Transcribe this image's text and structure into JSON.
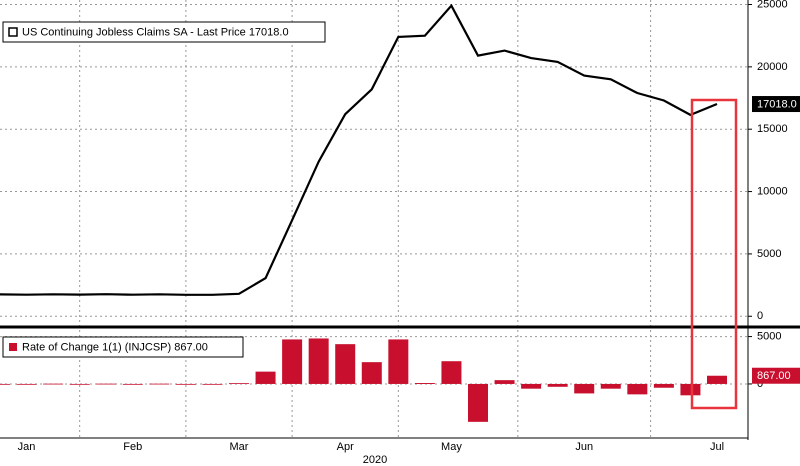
{
  "chart_data": [
    {
      "type": "line",
      "series": [
        {
          "name": "US Continuing Jobless Claims SA - Last Price 17018.0",
          "color": "#000000",
          "values": [
            1750,
            1730,
            1760,
            1740,
            1770,
            1730,
            1760,
            1720,
            1720,
            1800,
            3060,
            7700,
            12400,
            16200,
            18200,
            22400,
            22500,
            24900,
            20900,
            21300,
            20700,
            20400,
            19300,
            19000,
            17900,
            17300,
            16151,
            17018
          ]
        }
      ],
      "last_label": "17018.0",
      "ylim": [
        -700,
        25200
      ],
      "yticks": [
        0,
        5000,
        10000,
        15000,
        20000,
        25000
      ],
      "grid": true
    },
    {
      "type": "bar",
      "categories": [
        null,
        "Jan",
        null,
        null,
        null,
        "Feb",
        null,
        null,
        null,
        "Mar",
        null,
        null,
        null,
        "Apr",
        null,
        null,
        null,
        "May",
        null,
        null,
        null,
        null,
        "Jun",
        null,
        null,
        null,
        null,
        "Jul"
      ],
      "x_label": "2020",
      "series": [
        {
          "name": "Rate of Change 1(1) (INJCSP) 867.00",
          "color": "#c8102e",
          "values": [
            0,
            -20,
            30,
            -20,
            30,
            -40,
            30,
            -40,
            0,
            80,
            1300,
            4700,
            4800,
            4200,
            2300,
            4700,
            100,
            2400,
            -4000,
            400,
            -500,
            -300,
            -1000,
            -500,
            -1100,
            -400,
            -1200,
            867
          ]
        }
      ],
      "last_label": "867.00",
      "ylim": [
        -5600,
        5800
      ],
      "yticks": [
        0,
        5000
      ],
      "grid": true
    }
  ]
}
